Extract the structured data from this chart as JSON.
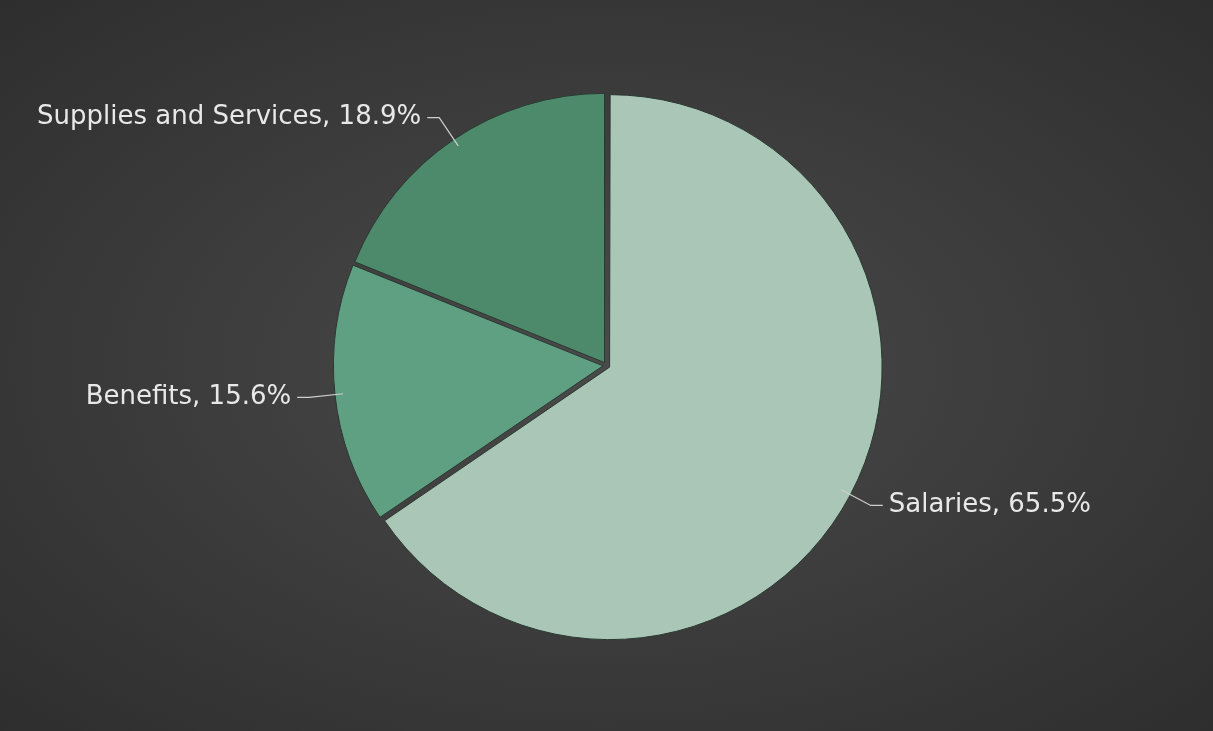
{
  "chart_data": {
    "type": "pie",
    "categories": [
      "Salaries",
      "Benefits",
      "Supplies and Services"
    ],
    "values": [
      65.5,
      15.6,
      18.9
    ],
    "colors": [
      "#a9c6b6",
      "#5f9f82",
      "#4d8a6c"
    ],
    "value_labels": [
      "65.5%",
      "15.6%",
      "18.9%"
    ],
    "legend": false
  }
}
